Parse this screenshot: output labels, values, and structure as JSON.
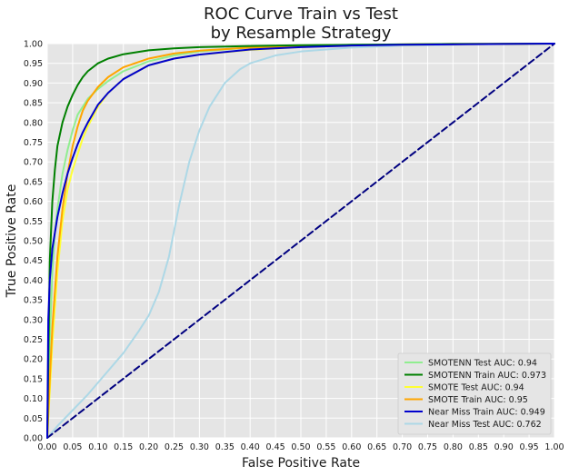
{
  "chart_data": {
    "type": "line",
    "title_lines": [
      "ROC Curve Train vs Test",
      "by Resample Strategy"
    ],
    "xlabel": "False Positive Rate",
    "ylabel": "True Positive Rate",
    "xlim": [
      0,
      1
    ],
    "ylim": [
      0,
      1
    ],
    "x_ticks": [
      "0.00",
      "0.05",
      "0.10",
      "0.15",
      "0.20",
      "0.25",
      "0.30",
      "0.35",
      "0.40",
      "0.45",
      "0.50",
      "0.55",
      "0.60",
      "0.65",
      "0.70",
      "0.75",
      "0.80",
      "0.85",
      "0.90",
      "0.95",
      "1.00"
    ],
    "y_ticks": [
      "0.00",
      "0.05",
      "0.10",
      "0.15",
      "0.20",
      "0.25",
      "0.30",
      "0.35",
      "0.40",
      "0.45",
      "0.50",
      "0.55",
      "0.60",
      "0.65",
      "0.70",
      "0.75",
      "0.80",
      "0.85",
      "0.90",
      "0.95",
      "1.00"
    ],
    "grid": true,
    "legend_position": "lower-right",
    "background": "#e5e5e5",
    "series": [
      {
        "name": "SMOTENN Test AUC: 0.94",
        "color": "#90ee90",
        "x": [
          0,
          0.005,
          0.01,
          0.015,
          0.02,
          0.03,
          0.04,
          0.05,
          0.06,
          0.08,
          0.1,
          0.12,
          0.15,
          0.2,
          0.25,
          0.3,
          0.4,
          0.5,
          0.6,
          0.7,
          0.8,
          0.9,
          1.0
        ],
        "y": [
          0,
          0.25,
          0.42,
          0.52,
          0.58,
          0.67,
          0.73,
          0.78,
          0.82,
          0.86,
          0.885,
          0.905,
          0.93,
          0.955,
          0.97,
          0.98,
          0.99,
          0.995,
          0.997,
          0.998,
          0.999,
          0.9995,
          1.0
        ]
      },
      {
        "name": "SMOTENN Train AUC: 0.973",
        "color": "#008000",
        "x": [
          0,
          0.005,
          0.01,
          0.015,
          0.02,
          0.03,
          0.04,
          0.05,
          0.06,
          0.07,
          0.08,
          0.1,
          0.12,
          0.15,
          0.2,
          0.25,
          0.3,
          0.4,
          0.5,
          0.6,
          0.7,
          0.8,
          0.9,
          1.0
        ],
        "y": [
          0,
          0.45,
          0.6,
          0.68,
          0.74,
          0.8,
          0.84,
          0.87,
          0.895,
          0.915,
          0.93,
          0.95,
          0.962,
          0.973,
          0.983,
          0.988,
          0.991,
          0.994,
          0.996,
          0.997,
          0.998,
          0.999,
          0.9995,
          1.0
        ]
      },
      {
        "name": "SMOTE Test AUC: 0.94",
        "color": "#ffff33",
        "x": [
          0,
          0.005,
          0.01,
          0.02,
          0.03,
          0.04,
          0.05,
          0.06,
          0.07,
          0.08,
          0.1,
          0.12,
          0.15,
          0.2,
          0.25,
          0.3,
          0.4,
          0.5,
          0.6,
          0.7,
          0.8,
          0.9,
          1.0
        ],
        "y": [
          0,
          0.12,
          0.24,
          0.42,
          0.55,
          0.63,
          0.68,
          0.72,
          0.76,
          0.79,
          0.84,
          0.875,
          0.91,
          0.945,
          0.962,
          0.972,
          0.984,
          0.991,
          0.995,
          0.997,
          0.998,
          0.999,
          1.0
        ]
      },
      {
        "name": "SMOTE Train AUC: 0.95",
        "color": "#ffa500",
        "x": [
          0,
          0.005,
          0.01,
          0.02,
          0.03,
          0.04,
          0.05,
          0.06,
          0.07,
          0.08,
          0.1,
          0.12,
          0.15,
          0.2,
          0.25,
          0.3,
          0.4,
          0.5,
          0.6,
          0.7,
          0.8,
          0.9,
          1.0
        ],
        "y": [
          0,
          0.15,
          0.28,
          0.46,
          0.58,
          0.67,
          0.74,
          0.79,
          0.83,
          0.855,
          0.89,
          0.915,
          0.94,
          0.962,
          0.975,
          0.982,
          0.99,
          0.994,
          0.996,
          0.998,
          0.999,
          0.9995,
          1.0
        ]
      },
      {
        "name": "Near Miss Train AUC: 0.949",
        "color": "#0000cd",
        "x": [
          0,
          0.002,
          0.005,
          0.01,
          0.02,
          0.03,
          0.04,
          0.05,
          0.06,
          0.07,
          0.08,
          0.1,
          0.12,
          0.15,
          0.2,
          0.25,
          0.3,
          0.4,
          0.5,
          0.6,
          0.7,
          0.8,
          0.9,
          1.0
        ],
        "y": [
          0,
          0.3,
          0.4,
          0.48,
          0.56,
          0.62,
          0.67,
          0.71,
          0.745,
          0.775,
          0.8,
          0.845,
          0.875,
          0.91,
          0.945,
          0.962,
          0.972,
          0.985,
          0.991,
          0.995,
          0.997,
          0.998,
          0.999,
          1.0
        ]
      },
      {
        "name": "Near Miss Test AUC: 0.762",
        "color": "#add8e6",
        "x": [
          0,
          0.02,
          0.05,
          0.08,
          0.1,
          0.12,
          0.15,
          0.18,
          0.2,
          0.22,
          0.24,
          0.26,
          0.28,
          0.3,
          0.32,
          0.35,
          0.38,
          0.4,
          0.45,
          0.5,
          0.55,
          0.6,
          0.7,
          0.8,
          0.9,
          1.0
        ],
        "y": [
          0,
          0.03,
          0.07,
          0.11,
          0.14,
          0.17,
          0.215,
          0.27,
          0.31,
          0.37,
          0.46,
          0.59,
          0.7,
          0.78,
          0.84,
          0.9,
          0.935,
          0.95,
          0.97,
          0.98,
          0.985,
          0.99,
          0.995,
          0.997,
          0.999,
          1.0
        ]
      },
      {
        "name": "",
        "color": "#000080",
        "dashed": true,
        "x": [
          0,
          1
        ],
        "y": [
          0,
          1
        ]
      }
    ]
  }
}
